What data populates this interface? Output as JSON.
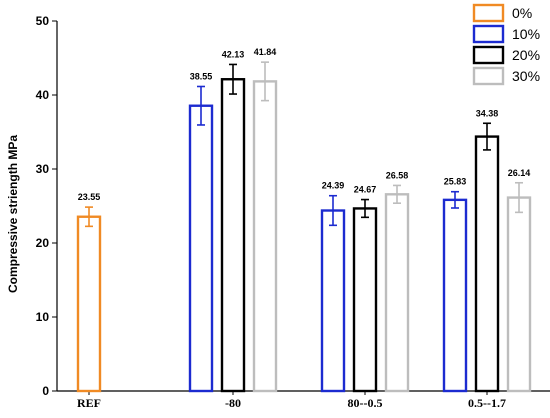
{
  "chart_data": {
    "type": "bar",
    "categories": [
      "REF",
      "-80",
      "80--0.5",
      "0.5--1.7"
    ],
    "ylabel": "Compressive striength MPa",
    "xlabel": "",
    "ylim": [
      0,
      50
    ],
    "yticks": [
      0,
      10,
      20,
      30,
      40,
      50
    ],
    "grid": false,
    "legend_position": "top-right",
    "series": [
      {
        "name": "0%",
        "color": "#f08a24",
        "values": [
          23.55,
          null,
          null,
          null
        ],
        "errors": [
          1.3,
          null,
          null,
          null
        ],
        "labels": [
          "23.55",
          null,
          null,
          null
        ]
      },
      {
        "name": "10%",
        "color": "#1c2bd0",
        "values": [
          null,
          38.55,
          24.39,
          25.83
        ],
        "errors": [
          null,
          2.6,
          2.0,
          1.1
        ],
        "labels": [
          null,
          "38.55",
          "24.39",
          "25.83"
        ]
      },
      {
        "name": "20%",
        "color": "#000000",
        "values": [
          null,
          42.13,
          24.67,
          34.38
        ],
        "errors": [
          null,
          2.0,
          1.2,
          1.8
        ],
        "labels": [
          null,
          "42.13",
          "24.67",
          "34.38"
        ]
      },
      {
        "name": "30%",
        "color": "#bdbdbd",
        "values": [
          null,
          41.84,
          26.58,
          26.14
        ],
        "errors": [
          null,
          2.6,
          1.2,
          2.0
        ],
        "labels": [
          null,
          "41.84",
          "26.58",
          "26.14"
        ]
      }
    ]
  }
}
